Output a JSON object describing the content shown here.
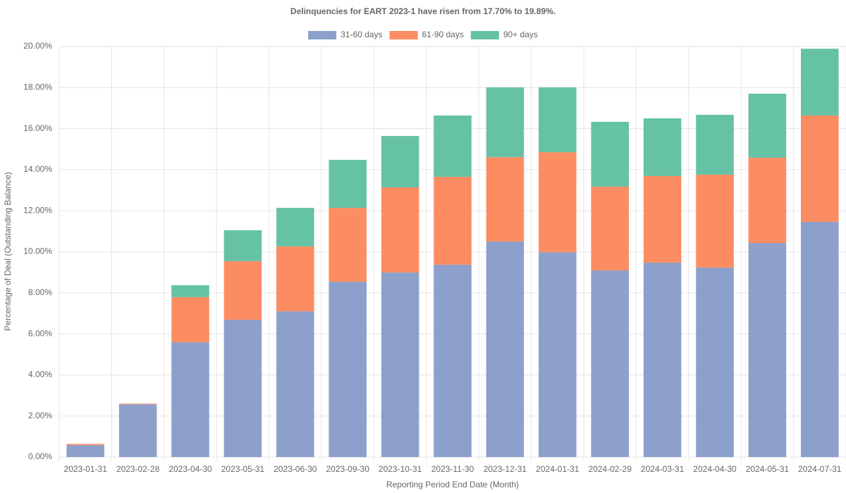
{
  "chart_data": {
    "type": "stacked-bar",
    "title": "Delinquencies for EART 2023-1 have risen from 17.70% to 19.89%.",
    "x_label": "Reporting Period End Date (Month)",
    "y_label": "Percentage of Deal (Outstanding Balance)",
    "categories": [
      "2023-01-31",
      "2023-02-28",
      "2023-04-30",
      "2023-05-31",
      "2023-06-30",
      "2023-09-30",
      "2023-10-31",
      "2023-11-30",
      "2023-12-31",
      "2024-01-31",
      "2024-02-29",
      "2024-03-31",
      "2024-04-30",
      "2024-05-31",
      "2024-07-31"
    ],
    "series": [
      {
        "name": "31-60 days",
        "color": "#8da0cb",
        "values": [
          0.58,
          2.57,
          5.59,
          6.69,
          7.1,
          8.54,
          8.99,
          9.37,
          10.5,
          9.98,
          9.09,
          9.47,
          9.23,
          10.43,
          11.46
        ]
      },
      {
        "name": "61-90 days",
        "color": "#fc8d62",
        "values": [
          0.06,
          0.03,
          2.2,
          2.85,
          3.16,
          3.6,
          4.15,
          4.28,
          4.11,
          4.87,
          4.08,
          4.22,
          4.53,
          4.15,
          5.18
        ]
      },
      {
        "name": "90+ days",
        "color": "#66c2a5",
        "values": [
          0,
          0,
          0.58,
          1.51,
          1.88,
          2.34,
          2.5,
          2.99,
          3.4,
          3.16,
          3.16,
          2.81,
          2.91,
          3.12,
          3.25
        ]
      }
    ],
    "ylim": [
      0,
      20
    ],
    "yticks": [
      {
        "value": 0,
        "label": "0.00%"
      },
      {
        "value": 2,
        "label": "2.00%"
      },
      {
        "value": 4,
        "label": "4.00%"
      },
      {
        "value": 6,
        "label": "6.00%"
      },
      {
        "value": 8,
        "label": "8.00%"
      },
      {
        "value": 10,
        "label": "10.00%"
      },
      {
        "value": 12,
        "label": "12.00%"
      },
      {
        "value": 14,
        "label": "14.00%"
      },
      {
        "value": 16,
        "label": "16.00%"
      },
      {
        "value": 18,
        "label": "18.00%"
      },
      {
        "value": 20,
        "label": "20.00%"
      }
    ],
    "grid": true,
    "legend": "top"
  }
}
